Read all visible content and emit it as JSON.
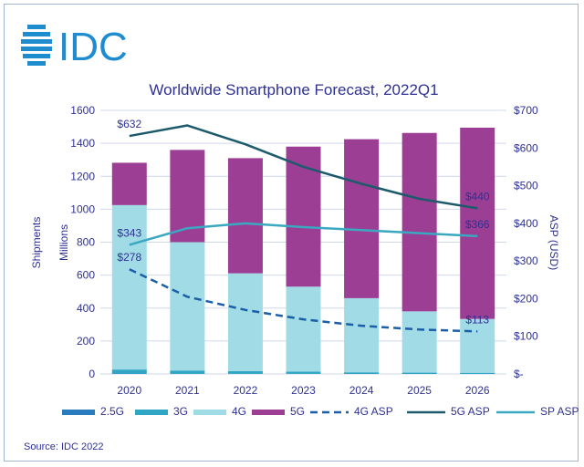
{
  "brand": {
    "logo_text": "IDC",
    "color": "#1f8ccf"
  },
  "source": "Source: IDC 2022",
  "colors": {
    "2.5G": "#2b7bbf",
    "3G": "#2fa6c4",
    "4G": "#a1dbe6",
    "5G": "#9c3f94",
    "4G ASP": "#1a5fa8",
    "5G ASP": "#1d5b6c",
    "SP ASP": "#3aa8c1",
    "text": "#2e3192",
    "grid": "#cfd8ea"
  },
  "chart_data": {
    "type": "bar",
    "stacked": true,
    "title": "Worldwide Smartphone Forecast, 2022Q1",
    "categories": [
      "2020",
      "2021",
      "2022",
      "2023",
      "2024",
      "2025",
      "2026"
    ],
    "ylabel_left": [
      "Shipments",
      "Millions"
    ],
    "ylabel_right": "ASP (USD)",
    "ylim_left": [
      0,
      1600
    ],
    "yticks_left": [
      "0",
      "200",
      "400",
      "600",
      "800",
      "1000",
      "1200",
      "1400",
      "1600"
    ],
    "ylim_right": [
      0,
      700
    ],
    "yticks_right": [
      "$-",
      "$100",
      "$200",
      "$300",
      "$400",
      "$500",
      "$600",
      "$700"
    ],
    "grid": true,
    "legend_position": "bottom",
    "series": [
      {
        "name": "2.5G",
        "kind": "bar",
        "values": [
          2,
          1,
          1,
          1,
          0,
          0,
          0
        ]
      },
      {
        "name": "3G",
        "kind": "bar",
        "values": [
          25,
          20,
          16,
          13,
          10,
          8,
          7
        ]
      },
      {
        "name": "4G",
        "kind": "bar",
        "values": [
          998,
          779,
          594,
          516,
          450,
          372,
          327
        ]
      },
      {
        "name": "5G",
        "kind": "bar",
        "values": [
          257,
          560,
          699,
          850,
          965,
          1083,
          1161
        ]
      },
      {
        "name": "4G ASP",
        "kind": "line",
        "axis": "right",
        "dashed": true,
        "values": [
          278,
          205,
          170,
          145,
          128,
          118,
          113
        ]
      },
      {
        "name": "5G ASP",
        "kind": "line",
        "axis": "right",
        "values": [
          632,
          660,
          610,
          550,
          505,
          465,
          440
        ]
      },
      {
        "name": "SP ASP",
        "kind": "line",
        "axis": "right",
        "values": [
          343,
          387,
          400,
          390,
          382,
          374,
          366
        ]
      }
    ],
    "annotations": [
      {
        "text": "$632",
        "series": "5G ASP",
        "index": 0
      },
      {
        "text": "$343",
        "series": "SP ASP",
        "index": 0
      },
      {
        "text": "$278",
        "series": "4G ASP",
        "index": 0
      },
      {
        "text": "$440",
        "series": "5G ASP",
        "index": 6
      },
      {
        "text": "$366",
        "series": "SP ASP",
        "index": 6
      },
      {
        "text": "$113",
        "series": "4G ASP",
        "index": 6
      }
    ]
  }
}
